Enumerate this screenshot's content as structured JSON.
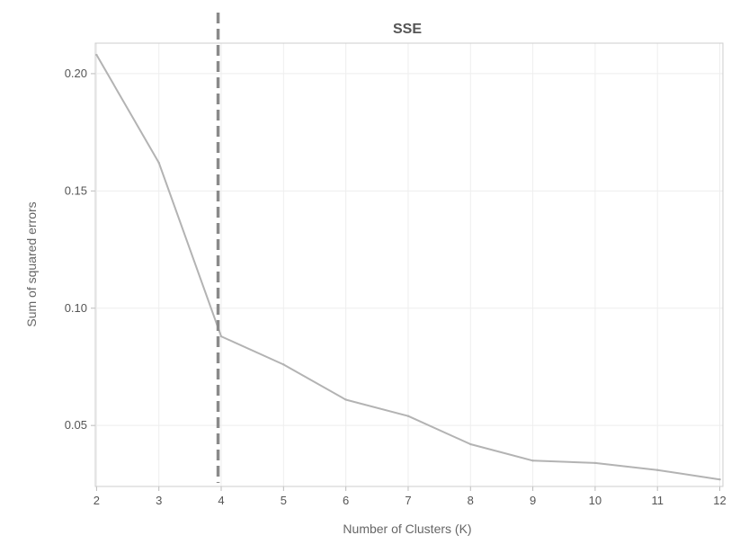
{
  "chart_data": {
    "type": "line",
    "title": "SSE",
    "xlabel": "Number of Clusters (K)",
    "ylabel": "Sum of squared errors",
    "x": [
      2,
      3,
      4,
      5,
      6,
      7,
      8,
      9,
      10,
      11,
      12
    ],
    "series": [
      {
        "values": [
          0.208,
          0.162,
          0.088,
          0.076,
          0.061,
          0.054,
          0.042,
          0.035,
          0.034,
          0.031,
          0.027
        ]
      }
    ],
    "xlim": [
      1.98,
      12.05
    ],
    "ylim": [
      0.024,
      0.213
    ],
    "xticks": [
      "2",
      "3",
      "4",
      "5",
      "6",
      "7",
      "8",
      "9",
      "10",
      "11",
      "12"
    ],
    "yticks": [
      "0.05",
      "0.10",
      "0.15",
      "0.20"
    ],
    "ytick_values": [
      0.05,
      0.1,
      0.15,
      0.2
    ],
    "reference_line": {
      "x": 3.95,
      "style": "dashed"
    },
    "grid": true,
    "colors": {
      "line": "#b3b3b3",
      "reference": "#8a8a8a",
      "grid": "#eeeeee",
      "text": "#555555"
    }
  }
}
